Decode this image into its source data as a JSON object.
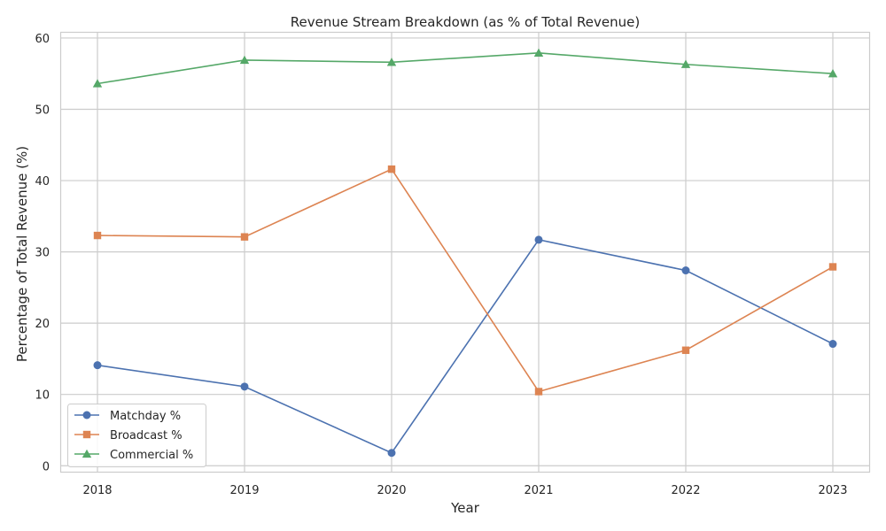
{
  "chart_data": {
    "type": "line",
    "title": "Revenue Stream Breakdown (as % of Total Revenue)",
    "xlabel": "Year",
    "ylabel": "Percentage of Total Revenue (%)",
    "x": [
      "2018",
      "2019",
      "2020",
      "2021",
      "2022",
      "2023"
    ],
    "yticks": [
      0,
      10,
      20,
      30,
      40,
      50,
      60
    ],
    "ylim": [
      -0.9,
      60.8
    ],
    "grid": true,
    "legend_position": "lower-left",
    "series": [
      {
        "name": "Matchday %",
        "marker": "circle",
        "color": "#4c72b0",
        "values": [
          14.1,
          11.1,
          1.8,
          31.7,
          27.4,
          17.1
        ]
      },
      {
        "name": "Broadcast %",
        "marker": "square",
        "color": "#dd8452",
        "values": [
          32.3,
          32.1,
          41.6,
          10.4,
          16.2,
          27.9
        ]
      },
      {
        "name": "Commercial %",
        "marker": "triangle",
        "color": "#55a868",
        "values": [
          53.6,
          56.9,
          56.6,
          57.9,
          56.3,
          55.0
        ]
      }
    ]
  }
}
